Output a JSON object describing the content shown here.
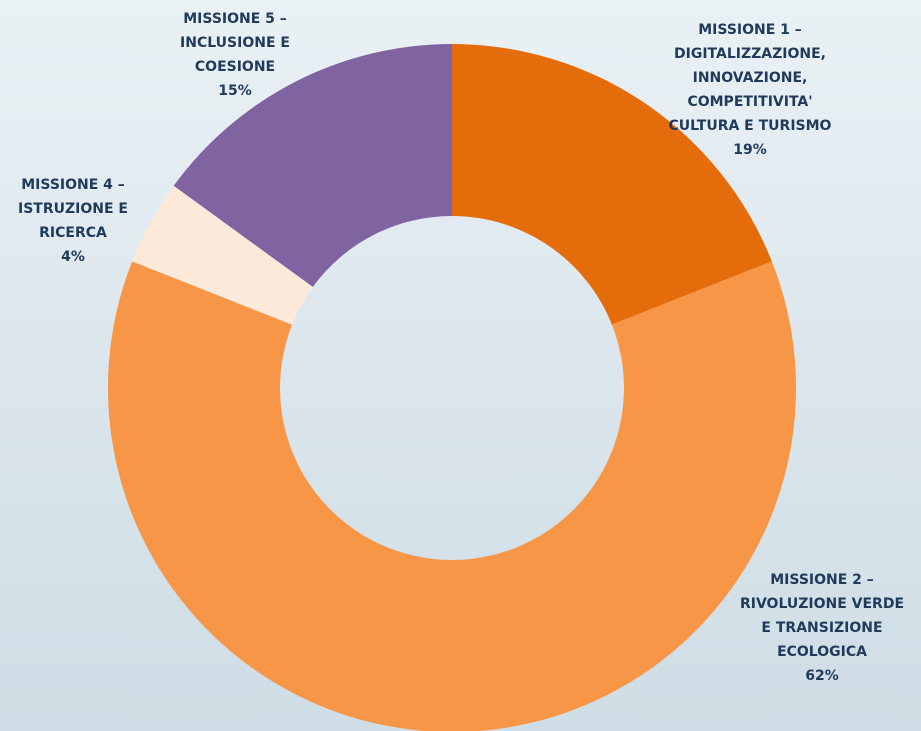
{
  "chart_data": {
    "type": "donut",
    "categories": [
      [
        "MISSIONE 1 –",
        "DIGITALIZZAZIONE,",
        "INNOVAZIONE,",
        "COMPETITIVITA'",
        "CULTURA E TURISMO"
      ],
      [
        "MISSIONE 2 –",
        "RIVOLUZIONE VERDE",
        "E TRANSIZIONE",
        "ECOLOGICA"
      ],
      [
        "MISSIONE 4 –",
        "ISTRUZIONE E",
        "RICERCA"
      ],
      [
        "MISSIONE 5 –",
        "INCLUSIONE E",
        "COESIONE"
      ]
    ],
    "values": [
      19,
      62,
      4,
      15
    ],
    "value_labels": [
      "19%",
      "62%",
      "4%",
      "15%"
    ],
    "colors": [
      "#e46c0a",
      "#f79646",
      "#fde9d9",
      "#8064a2"
    ]
  }
}
